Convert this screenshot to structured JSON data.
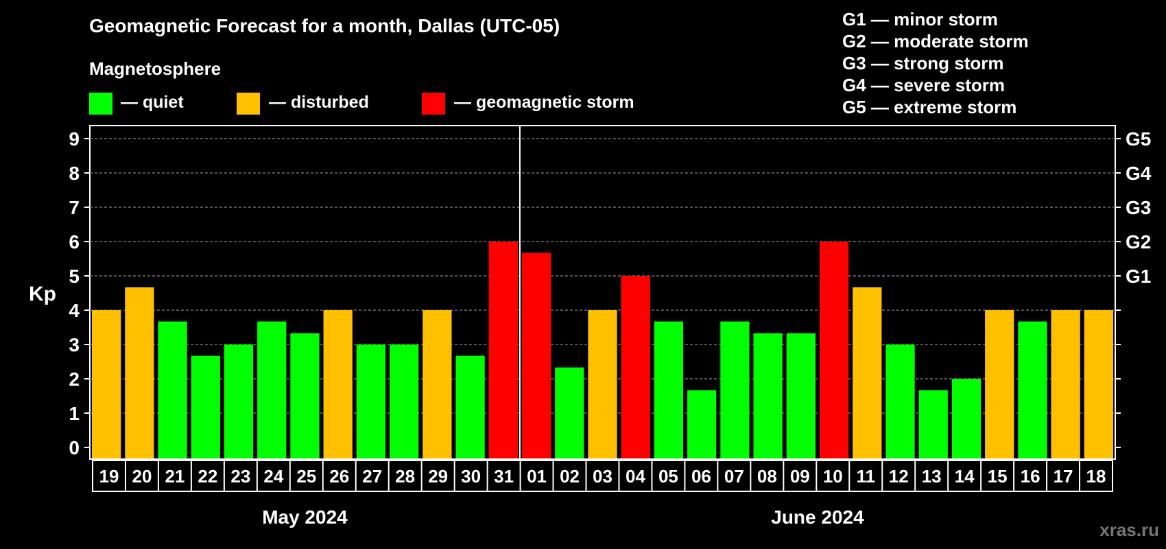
{
  "title": "Geomagnetic Forecast for a month, Dallas (UTC-05)",
  "watermark": "xras.ru",
  "legend": {
    "heading": "Magnetosphere",
    "items": [
      {
        "label": "— quiet",
        "color": "#00ff00"
      },
      {
        "label": "— disturbed",
        "color": "#ffc000"
      },
      {
        "label": "— geomagnetic storm",
        "color": "#ff0000"
      }
    ]
  },
  "g_scale": [
    "G1 — minor storm",
    "G2 — moderate storm",
    "G3 — strong storm",
    "G4 — severe storm",
    "G5 — extreme storm"
  ],
  "chart_data": {
    "type": "bar",
    "title": "Geomagnetic Forecast for a month, Dallas (UTC-05)",
    "ylabel": "Kp",
    "ylim": [
      0,
      9
    ],
    "yticks": [
      "0",
      "1",
      "2",
      "3",
      "4",
      "5",
      "6",
      "7",
      "8",
      "9"
    ],
    "right_ticks": [
      {
        "value": 5,
        "label": "G1"
      },
      {
        "value": 6,
        "label": "G2"
      },
      {
        "value": 7,
        "label": "G3"
      },
      {
        "value": 8,
        "label": "G4"
      },
      {
        "value": 9,
        "label": "G5"
      }
    ],
    "months": [
      {
        "label": "May 2024",
        "start": 0,
        "end": 12
      },
      {
        "label": "June 2024",
        "start": 13,
        "end": 30
      }
    ],
    "categories": [
      "19",
      "20",
      "21",
      "22",
      "23",
      "24",
      "25",
      "26",
      "27",
      "28",
      "29",
      "30",
      "31",
      "01",
      "02",
      "03",
      "04",
      "05",
      "06",
      "07",
      "08",
      "09",
      "10",
      "11",
      "12",
      "13",
      "14",
      "15",
      "16",
      "17",
      "18"
    ],
    "values": [
      4.0,
      4.67,
      3.67,
      2.67,
      3.0,
      3.67,
      3.33,
      4.0,
      3.0,
      3.0,
      4.0,
      2.67,
      6.0,
      5.67,
      2.33,
      4.0,
      5.0,
      3.67,
      1.67,
      3.67,
      3.33,
      3.33,
      6.0,
      4.67,
      3.0,
      1.67,
      2.0,
      4.0,
      3.67,
      4.0,
      4.0
    ],
    "levels": [
      "disturbed",
      "disturbed",
      "quiet",
      "quiet",
      "quiet",
      "quiet",
      "quiet",
      "disturbed",
      "quiet",
      "quiet",
      "disturbed",
      "quiet",
      "storm",
      "storm",
      "quiet",
      "disturbed",
      "storm",
      "quiet",
      "quiet",
      "quiet",
      "quiet",
      "quiet",
      "storm",
      "disturbed",
      "quiet",
      "quiet",
      "quiet",
      "disturbed",
      "quiet",
      "disturbed",
      "disturbed"
    ],
    "level_colors": {
      "quiet": "#00ff00",
      "disturbed": "#ffc000",
      "storm": "#ff0000"
    },
    "grid": true
  }
}
